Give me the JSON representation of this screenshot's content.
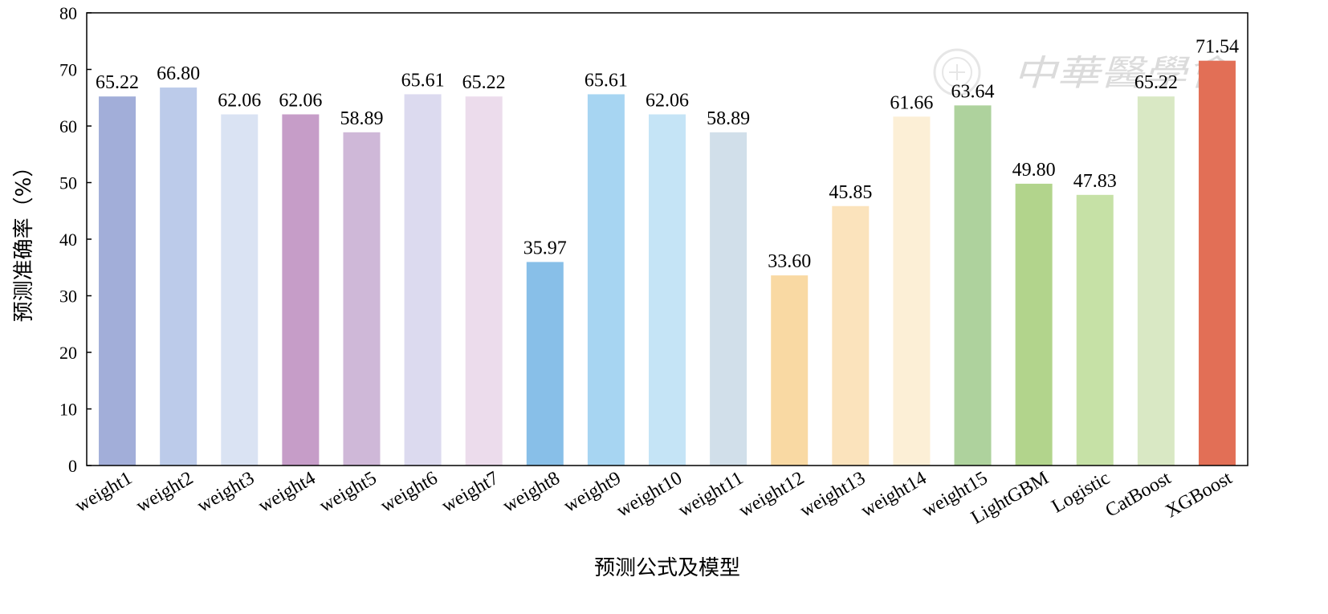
{
  "chart_data": {
    "type": "bar",
    "title": "",
    "xlabel": "预测公式及模型",
    "ylabel": "预测准确率（%）",
    "ylim": [
      0,
      80
    ],
    "yticks": [
      0,
      10,
      20,
      30,
      40,
      50,
      60,
      70,
      80
    ],
    "grid": false,
    "categories": [
      "weight1",
      "weight2",
      "weight3",
      "weight4",
      "weight5",
      "weight6",
      "weight7",
      "weight8",
      "weight9",
      "weight10",
      "weight11",
      "weight12",
      "weight13",
      "weight14",
      "weight15",
      "LightGBM",
      "Logistic",
      "CatBoost",
      "XGBoost"
    ],
    "values": [
      65.22,
      66.8,
      62.06,
      62.06,
      58.89,
      65.61,
      65.22,
      35.97,
      65.61,
      62.06,
      58.89,
      33.6,
      45.85,
      61.66,
      63.64,
      49.8,
      47.83,
      65.22,
      71.54
    ],
    "value_labels": [
      "65.22",
      "66.80",
      "62.06",
      "62.06",
      "58.89",
      "65.61",
      "65.22",
      "35.97",
      "65.61",
      "62.06",
      "58.89",
      "33.60",
      "45.85",
      "61.66",
      "63.64",
      "49.80",
      "47.83",
      "65.22",
      "71.54"
    ],
    "colors": [
      "#a2aed9",
      "#bccbea",
      "#dae3f3",
      "#c69dc8",
      "#cfb8d8",
      "#dcdaef",
      "#ecdcec",
      "#88bfe8",
      "#a7d5f2",
      "#c5e4f6",
      "#d1dfea",
      "#f9d9a3",
      "#fbe3bc",
      "#fcefd6",
      "#aed29d",
      "#b2d48c",
      "#c6e1a6",
      "#d9e8c4",
      "#e26f56"
    ]
  },
  "watermark": {
    "text": "中華醫學會",
    "icon": "society-seal-icon"
  }
}
